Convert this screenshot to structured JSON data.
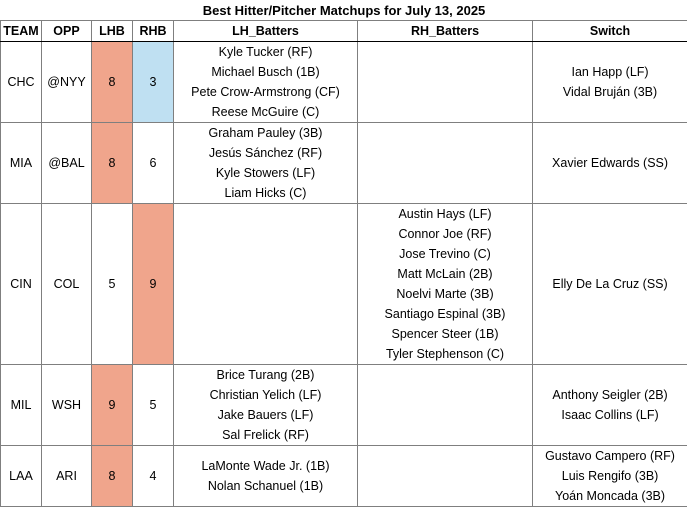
{
  "title": "Best Hitter/Pitcher Matchups for July 13, 2025",
  "headers": [
    "TEAM",
    "OPP",
    "LHB",
    "RHB",
    "LH_Batters",
    "RH_Batters",
    "Switch"
  ],
  "colors": {
    "hot": "#f0a58c",
    "cool": "#bfe0f2"
  },
  "rows": [
    {
      "team": "CHC",
      "opp": "@NYY",
      "lhb": "8",
      "rhb": "3",
      "lh": [
        "Kyle Tucker (RF)",
        "Michael Busch (1B)",
        "Pete Crow-Armstrong (CF)",
        "Reese McGuire (C)"
      ],
      "rh": [],
      "sw": [
        "Ian Happ (LF)",
        "Vidal Bruján (3B)"
      ]
    },
    {
      "team": "MIA",
      "opp": "@BAL",
      "lhb": "8",
      "rhb": "6",
      "lh": [
        "Graham Pauley (3B)",
        "Jesús Sánchez (RF)",
        "Kyle Stowers (LF)",
        "Liam Hicks (C)"
      ],
      "rh": [],
      "sw": [
        "Xavier Edwards (SS)"
      ]
    },
    {
      "team": "CIN",
      "opp": "COL",
      "lhb": "5",
      "rhb": "9",
      "lh": [],
      "rh": [
        "Austin Hays (LF)",
        "Connor Joe (RF)",
        "Jose Trevino (C)",
        "Matt McLain (2B)",
        "Noelvi Marte (3B)",
        "Santiago Espinal (3B)",
        "Spencer Steer (1B)",
        "Tyler Stephenson (C)"
      ],
      "sw": [
        "Elly De La Cruz (SS)"
      ]
    },
    {
      "team": "MIL",
      "opp": "WSH",
      "lhb": "9",
      "rhb": "5",
      "lh": [
        "Brice Turang (2B)",
        "Christian Yelich (LF)",
        "Jake Bauers (LF)",
        "Sal Frelick (RF)"
      ],
      "rh": [],
      "sw": [
        "Anthony Seigler (2B)",
        "Isaac Collins (LF)"
      ]
    },
    {
      "team": "LAA",
      "opp": "ARI",
      "lhb": "8",
      "rhb": "4",
      "lh": [
        "LaMonte Wade Jr. (1B)",
        "Nolan Schanuel (1B)"
      ],
      "rh": [],
      "sw": [
        "Gustavo Campero (RF)",
        "Luis Rengifo (3B)",
        "Yoán Moncada (3B)"
      ]
    }
  ]
}
